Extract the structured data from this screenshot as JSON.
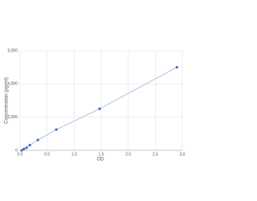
{
  "chart_data": {
    "type": "scatter",
    "x_label": "OD",
    "y_label": "Concentration (pg/ml)",
    "series": [
      {
        "color": "#3d6db5",
        "x": [
          0.03,
          0.07,
          0.12,
          0.18,
          0.33,
          0.67,
          1.47,
          2.9
        ],
        "values": [
          0,
          78,
          156,
          312,
          625,
          1250,
          2500,
          5000
        ]
      }
    ],
    "line_color": "#8fa8dc",
    "xlim": [
      0,
      3
    ],
    "xticks": [
      {
        "value": 0,
        "label": "0.0"
      },
      {
        "value": 0.5,
        "label": "0.5"
      },
      {
        "value": 1,
        "label": "1.0"
      },
      {
        "value": 1.5,
        "label": "1.5"
      },
      {
        "value": 2,
        "label": "2.0"
      },
      {
        "value": 2.5,
        "label": "2.5"
      },
      {
        "value": 3,
        "label": "3.0"
      }
    ],
    "ylim": [
      0,
      6000
    ],
    "yticks": [
      0,
      {
        "value": 2000,
        "label": "2,000"
      },
      {
        "value": 4000,
        "label": "4,000"
      },
      {
        "value": 6000,
        "label": "6,000"
      }
    ],
    "grid": true
  }
}
